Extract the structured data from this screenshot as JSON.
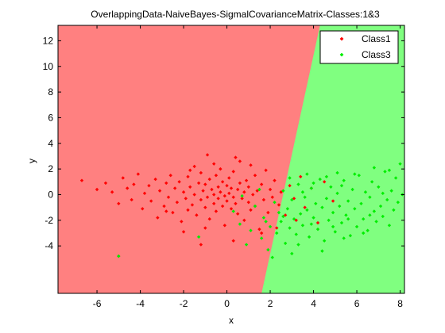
{
  "chart_data": {
    "type": "scatter",
    "title": "OverlappingData-NaiveBayes-SigmalCovarianceMatrix-Classes:1&3",
    "xlabel": "x",
    "ylabel": "y",
    "xlim": [
      -7.8,
      8.2
    ],
    "ylim": [
      -7.7,
      13.2
    ],
    "xticks": [
      "-6",
      "-4",
      "-2",
      "0",
      "2",
      "4",
      "6",
      "8"
    ],
    "yticks": [
      "-4",
      "-2",
      "0",
      "2",
      "4",
      "6",
      "8",
      "10",
      "12"
    ],
    "legend_position": "top-right",
    "marker": "diamond",
    "decision_boundary": {
      "x_at_ylim_low": 1.6,
      "x_at_ylim_high": 4.3
    },
    "colors": {
      "region_class1": "#ff8080",
      "region_class3": "#80ff80",
      "class1": "#ff0000",
      "class3": "#00ee00"
    },
    "series": [
      {
        "name": "Class1",
        "center": [
          -0.3,
          0.0
        ],
        "std": [
          1.9,
          1.0
        ],
        "points": [
          [
            -6.7,
            1.1
          ],
          [
            -6.0,
            0.4
          ],
          [
            -5.6,
            0.9
          ],
          [
            -5.3,
            0.2
          ],
          [
            -5.0,
            -0.7
          ],
          [
            -4.8,
            1.3
          ],
          [
            -4.6,
            0.5
          ],
          [
            -4.4,
            -0.4
          ],
          [
            -4.3,
            0.8
          ],
          [
            -4.1,
            1.6
          ],
          [
            -3.9,
            -1.1
          ],
          [
            -3.8,
            0.1
          ],
          [
            -3.6,
            0.7
          ],
          [
            -3.5,
            -0.5
          ],
          [
            -3.3,
            1.2
          ],
          [
            -3.2,
            -1.8
          ],
          [
            -3.1,
            0.3
          ],
          [
            -2.9,
            -0.9
          ],
          [
            -2.8,
            0.9
          ],
          [
            -2.7,
            -0.2
          ],
          [
            -2.6,
            1.5
          ],
          [
            -2.5,
            -1.4
          ],
          [
            -2.4,
            0.5
          ],
          [
            -2.3,
            -0.6
          ],
          [
            -2.2,
            1.0
          ],
          [
            -2.1,
            -2.1
          ],
          [
            -2.0,
            0.2
          ],
          [
            -1.9,
            -0.3
          ],
          [
            -1.8,
            1.4
          ],
          [
            -1.8,
            -1.2
          ],
          [
            -1.7,
            0.6
          ],
          [
            -1.6,
            -0.8
          ],
          [
            -1.5,
            2.2
          ],
          [
            -1.5,
            0.0
          ],
          [
            -1.4,
            -1.6
          ],
          [
            -1.3,
            0.9
          ],
          [
            -1.2,
            -0.4
          ],
          [
            -1.2,
            1.7
          ],
          [
            -1.1,
            0.3
          ],
          [
            -1.0,
            -1.0
          ],
          [
            -1.0,
            0.8
          ],
          [
            -0.9,
            3.1
          ],
          [
            -0.9,
            -0.2
          ],
          [
            -0.8,
            1.2
          ],
          [
            -0.8,
            -1.9
          ],
          [
            -0.7,
            0.4
          ],
          [
            -0.6,
            -0.7
          ],
          [
            -0.6,
            0.0
          ],
          [
            -0.5,
            1.5
          ],
          [
            -0.5,
            -1.3
          ],
          [
            -0.4,
            0.6
          ],
          [
            -0.4,
            -0.3
          ],
          [
            -0.3,
            2.0
          ],
          [
            -0.3,
            0.2
          ],
          [
            -0.2,
            -0.9
          ],
          [
            -0.2,
            1.0
          ],
          [
            -0.1,
            -0.1
          ],
          [
            -0.1,
            -2.4
          ],
          [
            0.0,
            0.7
          ],
          [
            0.0,
            -0.5
          ],
          [
            0.1,
            1.3
          ],
          [
            0.1,
            0.1
          ],
          [
            0.2,
            -1.1
          ],
          [
            0.2,
            0.5
          ],
          [
            0.3,
            -0.2
          ],
          [
            0.3,
            1.8
          ],
          [
            0.4,
            -0.7
          ],
          [
            0.5,
            0.4
          ],
          [
            0.5,
            -1.5
          ],
          [
            0.6,
            0.9
          ],
          [
            0.6,
            2.6
          ],
          [
            0.7,
            -0.3
          ],
          [
            0.8,
            0.2
          ],
          [
            0.8,
            -2.0
          ],
          [
            0.9,
            1.1
          ],
          [
            1.0,
            -0.6
          ],
          [
            1.0,
            0.6
          ],
          [
            1.1,
            -1.2
          ],
          [
            1.2,
            0.0
          ],
          [
            1.3,
            1.5
          ],
          [
            1.3,
            -0.9
          ],
          [
            1.4,
            0.3
          ],
          [
            1.5,
            -2.7
          ],
          [
            1.6,
            0.8
          ],
          [
            1.7,
            -0.4
          ],
          [
            1.8,
            1.9
          ],
          [
            1.9,
            -1.4
          ],
          [
            2.0,
            0.4
          ],
          [
            2.1,
            -0.2
          ],
          [
            2.2,
            1.1
          ],
          [
            2.4,
            -0.8
          ],
          [
            2.5,
            0.2
          ],
          [
            2.7,
            -1.6
          ],
          [
            2.9,
            0.7
          ],
          [
            3.1,
            -0.3
          ],
          [
            3.4,
            1.4
          ],
          [
            3.6,
            -1.0
          ],
          [
            3.9,
            0.5
          ],
          [
            4.2,
            -2.2
          ],
          [
            4.5,
            1.0
          ],
          [
            4.9,
            -0.5
          ],
          [
            -5.0,
            -4.8
          ],
          [
            -2.0,
            -2.9
          ],
          [
            -1.2,
            -3.9
          ],
          [
            0.3,
            -3.6
          ],
          [
            1.6,
            -3.0
          ],
          [
            2.3,
            -2.6
          ],
          [
            3.2,
            -2.0
          ],
          [
            -2.8,
            -1.3
          ],
          [
            -1.7,
            1.9
          ],
          [
            -0.6,
            2.4
          ],
          [
            0.4,
            2.9
          ],
          [
            1.1,
            2.3
          ],
          [
            -1.0,
            -2.6
          ]
        ]
      },
      {
        "name": "Class3",
        "center": [
          4.8,
          -0.9
        ],
        "std": [
          1.7,
          1.2
        ],
        "points": [
          [
            -5.0,
            -4.8
          ],
          [
            -1.3,
            -3.3
          ],
          [
            0.6,
            -2.3
          ],
          [
            0.7,
            -0.1
          ],
          [
            1.1,
            -2.8
          ],
          [
            1.3,
            -0.9
          ],
          [
            1.6,
            -3.4
          ],
          [
            1.7,
            -1.8
          ],
          [
            1.9,
            -4.3
          ],
          [
            2.0,
            -2.5
          ],
          [
            2.2,
            -0.6
          ],
          [
            2.3,
            -3.0
          ],
          [
            2.4,
            -1.4
          ],
          [
            2.5,
            -2.1
          ],
          [
            2.6,
            0.3
          ],
          [
            2.7,
            -3.8
          ],
          [
            2.8,
            -1.1
          ],
          [
            2.9,
            -2.6
          ],
          [
            3.0,
            -0.4
          ],
          [
            3.1,
            -1.9
          ],
          [
            3.2,
            -3.1
          ],
          [
            3.3,
            0.8
          ],
          [
            3.4,
            -1.5
          ],
          [
            3.5,
            -2.4
          ],
          [
            3.6,
            -0.2
          ],
          [
            3.7,
            -1.2
          ],
          [
            3.8,
            -3.3
          ],
          [
            3.9,
            0.5
          ],
          [
            4.0,
            -1.8
          ],
          [
            4.1,
            -0.7
          ],
          [
            4.2,
            -2.7
          ],
          [
            4.3,
            1.2
          ],
          [
            4.4,
            -1.0
          ],
          [
            4.5,
            -3.6
          ],
          [
            4.6,
            -0.3
          ],
          [
            4.7,
            -2.0
          ],
          [
            4.8,
            0.6
          ],
          [
            4.9,
            -1.4
          ],
          [
            5.0,
            -2.9
          ],
          [
            5.1,
            0.1
          ],
          [
            5.2,
            -0.9
          ],
          [
            5.3,
            -2.2
          ],
          [
            5.4,
            1.1
          ],
          [
            5.5,
            -1.6
          ],
          [
            5.6,
            -0.5
          ],
          [
            5.7,
            -3.2
          ],
          [
            5.8,
            0.4
          ],
          [
            5.9,
            -1.1
          ],
          [
            6.0,
            -2.5
          ],
          [
            6.1,
            1.5
          ],
          [
            6.2,
            -0.7
          ],
          [
            6.3,
            -1.9
          ],
          [
            6.4,
            0.2
          ],
          [
            6.5,
            -2.8
          ],
          [
            6.6,
            -0.2
          ],
          [
            6.7,
            1.0
          ],
          [
            6.8,
            -1.3
          ],
          [
            6.9,
            -2.1
          ],
          [
            7.0,
            0.6
          ],
          [
            7.1,
            -0.9
          ],
          [
            7.2,
            -1.7
          ],
          [
            7.3,
            1.8
          ],
          [
            7.4,
            -0.4
          ],
          [
            7.5,
            -2.4
          ],
          [
            7.6,
            0.3
          ],
          [
            7.7,
            -1.2
          ],
          [
            7.8,
            1.3
          ],
          [
            7.9,
            -0.6
          ],
          [
            8.0,
            2.4
          ],
          [
            8.1,
            0.0
          ],
          [
            7.5,
            1.9
          ],
          [
            6.8,
            2.1
          ],
          [
            5.9,
            1.6
          ],
          [
            5.1,
            1.7
          ],
          [
            4.6,
            1.4
          ],
          [
            3.7,
            1.6
          ],
          [
            2.9,
            1.3
          ],
          [
            3.3,
            -3.9
          ],
          [
            4.4,
            -4.4
          ],
          [
            2.1,
            -4.9
          ],
          [
            5.4,
            -3.4
          ],
          [
            6.3,
            -3.0
          ],
          [
            1.8,
            -2.1
          ],
          [
            2.6,
            -1.7
          ],
          [
            3.5,
            0.2
          ],
          [
            4.0,
            0.9
          ],
          [
            4.9,
            -2.5
          ],
          [
            5.6,
            -1.9
          ],
          [
            6.6,
            -1.6
          ],
          [
            7.2,
            0.1
          ],
          [
            1.5,
            0.4
          ],
          [
            0.3,
            -1.3
          ],
          [
            0.9,
            -3.9
          ],
          [
            3.0,
            -4.6
          ],
          [
            3.9,
            -2.3
          ],
          [
            5.3,
            0.7
          ]
        ]
      }
    ]
  }
}
